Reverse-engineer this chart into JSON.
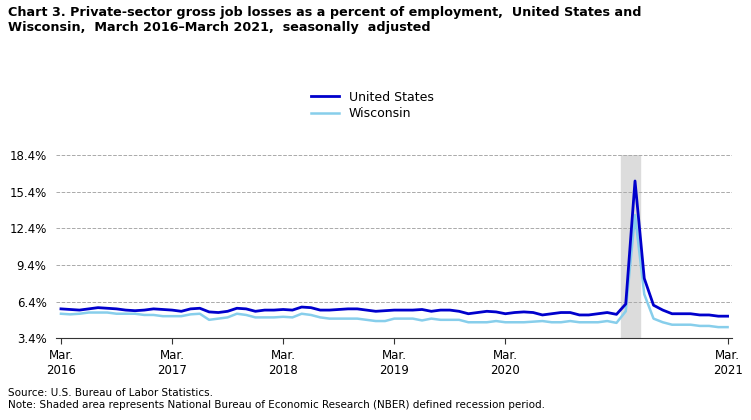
{
  "title_line1": "Chart 3. Private-sector gross job losses as a percent of employment,  United States and",
  "title_line2": "Wisconsin,  March 2016–March 2021,  seasonally  adjusted",
  "us_data": [
    5.8,
    5.75,
    5.7,
    5.8,
    5.9,
    5.85,
    5.8,
    5.7,
    5.65,
    5.7,
    5.8,
    5.75,
    5.7,
    5.6,
    5.8,
    5.85,
    5.55,
    5.5,
    5.6,
    5.85,
    5.8,
    5.6,
    5.7,
    5.7,
    5.75,
    5.7,
    5.95,
    5.9,
    5.7,
    5.7,
    5.75,
    5.8,
    5.8,
    5.7,
    5.6,
    5.65,
    5.7,
    5.7,
    5.7,
    5.75,
    5.6,
    5.7,
    5.7,
    5.6,
    5.4,
    5.5,
    5.6,
    5.55,
    5.4,
    5.5,
    5.55,
    5.5,
    5.3,
    5.4,
    5.5,
    5.5,
    5.3,
    5.3,
    5.4,
    5.5,
    5.35,
    6.2,
    16.3,
    8.3,
    6.1,
    5.7,
    5.4,
    5.4,
    5.4,
    5.3,
    5.3,
    5.2,
    5.2
  ],
  "wi_data": [
    5.4,
    5.35,
    5.4,
    5.5,
    5.5,
    5.5,
    5.4,
    5.4,
    5.4,
    5.3,
    5.3,
    5.2,
    5.2,
    5.2,
    5.35,
    5.4,
    4.9,
    5.0,
    5.1,
    5.4,
    5.3,
    5.1,
    5.1,
    5.1,
    5.15,
    5.1,
    5.4,
    5.3,
    5.1,
    5.0,
    5.0,
    5.0,
    5.0,
    4.9,
    4.8,
    4.8,
    5.0,
    5.0,
    5.0,
    4.85,
    5.0,
    4.9,
    4.9,
    4.9,
    4.7,
    4.7,
    4.7,
    4.8,
    4.7,
    4.7,
    4.7,
    4.75,
    4.8,
    4.7,
    4.7,
    4.8,
    4.7,
    4.7,
    4.7,
    4.8,
    4.65,
    5.6,
    13.5,
    7.0,
    5.0,
    4.7,
    4.5,
    4.5,
    4.5,
    4.4,
    4.4,
    4.3,
    4.3
  ],
  "n_points": 73,
  "recession_start_idx": 61,
  "recession_end_idx": 63,
  "ylim": [
    3.4,
    18.4
  ],
  "yticks": [
    3.4,
    6.4,
    9.4,
    12.4,
    15.4,
    18.4
  ],
  "ytick_labels": [
    "3.4%",
    "6.4%",
    "9.4%",
    "12.4%",
    "15.4%",
    "18.4%"
  ],
  "xtick_labels": [
    "Mar.\n2016",
    "Mar.\n2017",
    "Mar.\n2018",
    "Mar.\n2019",
    "Mar.\n2020",
    "Mar.\n2021"
  ],
  "xtick_positions": [
    0,
    12,
    24,
    36,
    48,
    72
  ],
  "us_color": "#0000CC",
  "wi_color": "#87CEEB",
  "recession_color": "#DCDCDC",
  "grid_color": "#AAAAAA",
  "background_color": "#FFFFFF",
  "source_text": "Source: U.S. Bureau of Labor Statistics.",
  "note_text": "Note: Shaded area represents National Bureau of Economic Research (NBER) defined recession period.",
  "legend_us": "United States",
  "legend_wi": "Wisconsin"
}
